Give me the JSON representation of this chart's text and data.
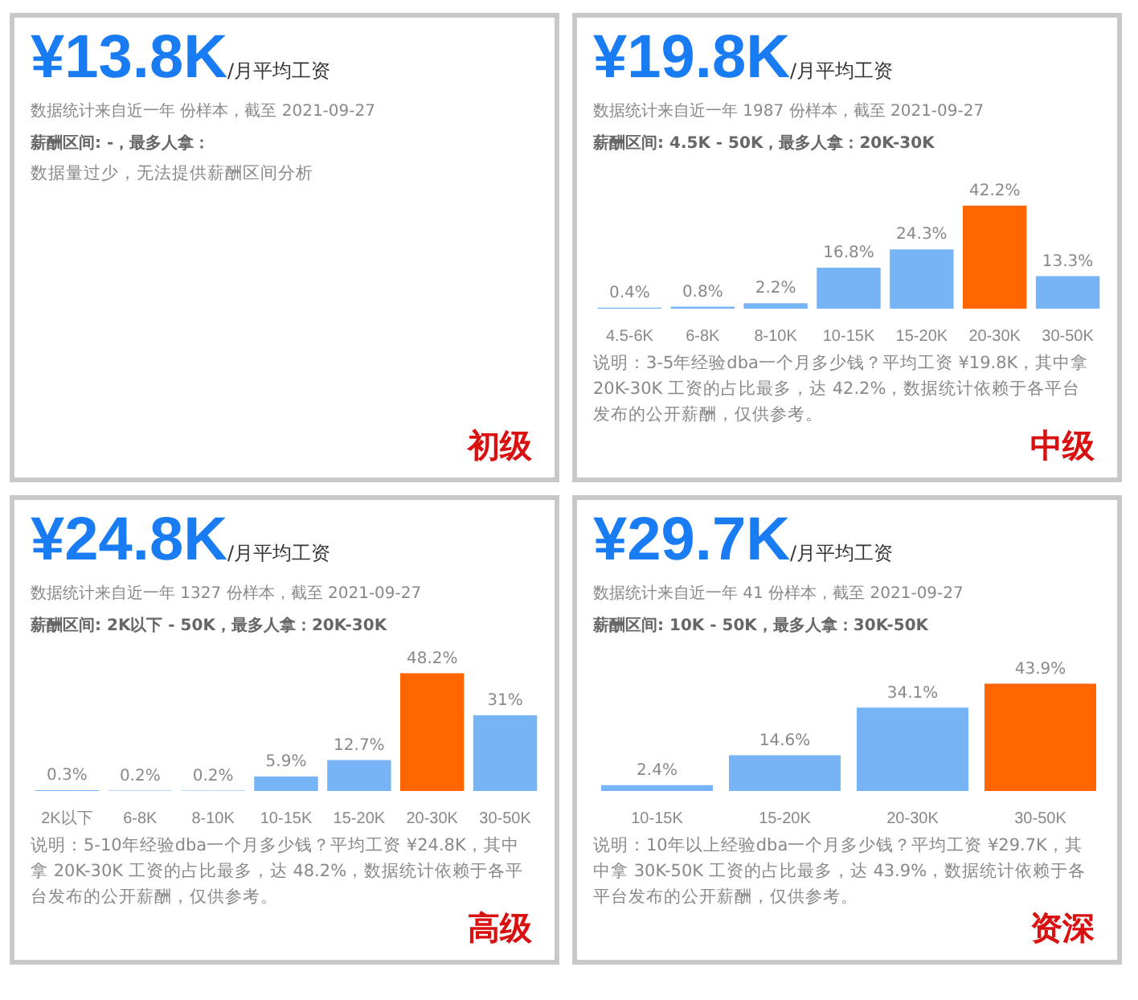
{
  "chart_data": [
    {
      "type": "other",
      "title": "¥13.8K",
      "subtitle": "/月平均工资",
      "annotations": [
        "数据统计来自近一年 份样本，截至 2021-09-27",
        "薪酬区间: -，最多人拿：",
        "数据量过少，无法提供薪酬区间分析",
        "初级"
      ]
    },
    {
      "type": "bar",
      "title": "¥19.8K",
      "subtitle": "/月平均工资",
      "categories": [
        "4.5-6K",
        "6-8K",
        "8-10K",
        "10-15K",
        "15-20K",
        "20-30K",
        "30-50K"
      ],
      "values": [
        0.4,
        0.8,
        2.2,
        16.8,
        24.3,
        42.2,
        13.3
      ],
      "value_labels": [
        "0.4%",
        "0.8%",
        "2.2%",
        "16.8%",
        "24.3%",
        "42.2%",
        "13.3%"
      ],
      "colors": [
        "#76b4f6",
        "#76b4f6",
        "#76b4f6",
        "#76b4f6",
        "#76b4f6",
        "#ff6600",
        "#76b4f6"
      ],
      "annotations": [
        "数据统计来自近一年 1987 份样本，截至 2021-09-27",
        "薪酬区间: 4.5K - 50K，最多人拿：20K-30K",
        "说明：3-5年经验dba一个月多少钱？平均工资 ¥19.8K，其中拿 20K-30K 工资的占比最多，达 42.2%，数据统计依赖于各平台发布的公开薪酬，仅供参考。",
        "中级"
      ]
    },
    {
      "type": "bar",
      "title": "¥24.8K",
      "subtitle": "/月平均工资",
      "categories": [
        "2K以下",
        "6-8K",
        "8-10K",
        "10-15K",
        "15-20K",
        "20-30K",
        "30-50K"
      ],
      "values": [
        0.3,
        0.2,
        0.2,
        5.9,
        12.7,
        48.2,
        31
      ],
      "value_labels": [
        "0.3%",
        "0.2%",
        "0.2%",
        "5.9%",
        "12.7%",
        "48.2%",
        "31%"
      ],
      "colors": [
        "#76b4f6",
        "#76b4f6",
        "#76b4f6",
        "#76b4f6",
        "#76b4f6",
        "#ff6600",
        "#76b4f6"
      ],
      "annotations": [
        "数据统计来自近一年 1327 份样本，截至 2021-09-27",
        "薪酬区间: 2K以下 - 50K，最多人拿：20K-30K",
        "说明：5-10年经验dba一个月多少钱？平均工资 ¥24.8K，其中拿 20K-30K 工资的占比最多，达 48.2%，数据统计依赖于各平台发布的公开薪酬，仅供参考。",
        "高级"
      ]
    },
    {
      "type": "bar",
      "title": "¥29.7K",
      "subtitle": "/月平均工资",
      "categories": [
        "10-15K",
        "15-20K",
        "20-30K",
        "30-50K"
      ],
      "values": [
        2.4,
        14.6,
        34.1,
        43.9
      ],
      "value_labels": [
        "2.4%",
        "14.6%",
        "34.1%",
        "43.9%"
      ],
      "colors": [
        "#76b4f6",
        "#76b4f6",
        "#76b4f6",
        "#ff6600"
      ],
      "annotations": [
        "数据统计来自近一年 41 份样本，截至 2021-09-27",
        "薪酬区间: 10K - 50K，最多人拿：30K-50K",
        "说明：10年以上经验dba一个月多少钱？平均工资 ¥29.7K，其中拿 30K-50K 工资的占比最多，达 43.9%，数据统计依赖于各平台发布的公开薪酬，仅供参考。",
        "资深"
      ]
    }
  ]
}
